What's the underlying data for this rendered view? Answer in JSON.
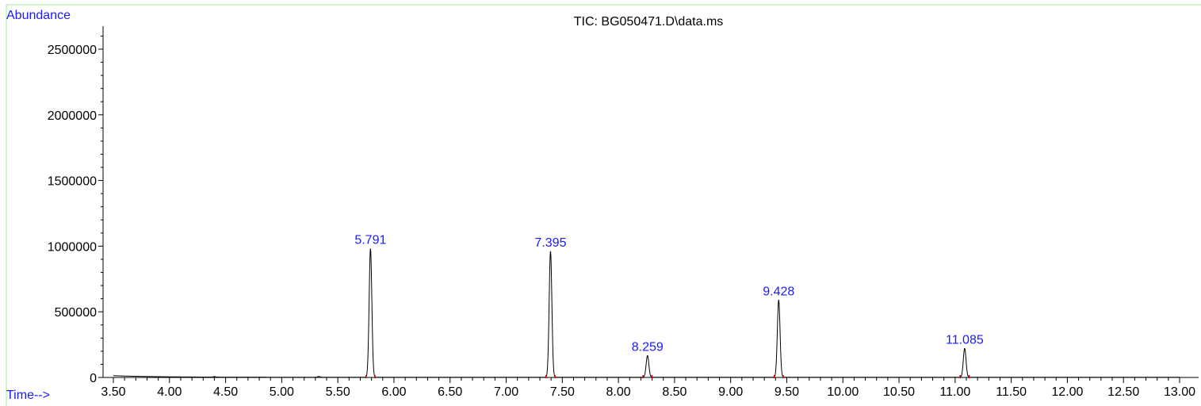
{
  "chart_data": {
    "type": "line",
    "title": "TIC: BG050471.D\\data.ms",
    "ylabel": "Abundance",
    "xlabel": "Time-->",
    "xlim": [
      3.5,
      13.0
    ],
    "ylim": [
      0,
      2650000
    ],
    "x_ticks": [
      "3.50",
      "4.00",
      "4.50",
      "5.00",
      "5.50",
      "6.00",
      "6.50",
      "7.00",
      "7.50",
      "8.00",
      "8.50",
      "9.00",
      "9.50",
      "10.00",
      "10.50",
      "11.00",
      "11.50",
      "12.00",
      "12.50",
      "13.00"
    ],
    "y_ticks": [
      "0",
      "500000",
      "1000000",
      "1500000",
      "2000000",
      "2500000"
    ],
    "grid": false,
    "peaks": [
      {
        "rt": 5.791,
        "label": "5.791",
        "abundance": 980000
      },
      {
        "rt": 7.395,
        "label": "7.395",
        "abundance": 960000
      },
      {
        "rt": 8.259,
        "label": "8.259",
        "abundance": 165000
      },
      {
        "rt": 9.428,
        "label": "9.428",
        "abundance": 590000
      },
      {
        "rt": 11.085,
        "label": "11.085",
        "abundance": 220000
      }
    ],
    "colors": {
      "trace": "#000000",
      "peak_label": "#1a1aff",
      "axis_label": "#1a1aff",
      "frame": "#99ee99",
      "baseline_marker": "#cc0000"
    }
  }
}
